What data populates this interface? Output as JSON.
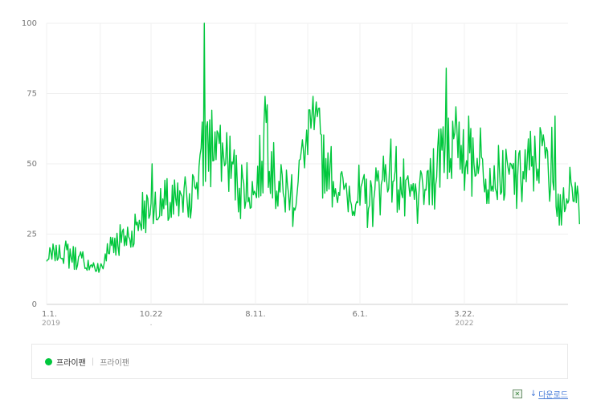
{
  "chart_data": {
    "type": "line",
    "ylim": [
      0,
      100
    ],
    "yticks": [
      0,
      25,
      50,
      75,
      100
    ],
    "grid": true,
    "x_range": [
      "2019-01-01",
      "2023-12-31"
    ],
    "x_tick_labels": [
      {
        "date": "2019-01-01",
        "label": "1.1.",
        "sub": "2019"
      },
      {
        "date": "2019-10-22",
        "label": "10.22",
        "sub": "."
      },
      {
        "date": "2020-08-11",
        "label": "8.11.",
        "sub": ""
      },
      {
        "date": "2021-06-01",
        "label": "6.1.",
        "sub": ""
      },
      {
        "date": "2022-03-22",
        "label": "3.22.",
        "sub": "2022"
      }
    ],
    "x_gridlines": [
      "2019-01-01",
      "2019-06-01",
      "2019-10-22",
      "2020-03-17",
      "2020-08-11",
      "2021-01-05",
      "2021-06-01",
      "2021-10-26",
      "2022-03-22",
      "2022-08-16"
    ],
    "series": [
      {
        "name": "프라이팬",
        "color": "#00c73c",
        "keypoints": [
          [
            "2019-01-01",
            16
          ],
          [
            "2019-02-15",
            19
          ],
          [
            "2019-04-01",
            16
          ],
          [
            "2019-05-15",
            13
          ],
          [
            "2019-06-10",
            13
          ],
          [
            "2019-06-25",
            22
          ],
          [
            "2019-08-01",
            23
          ],
          [
            "2019-09-01",
            25
          ],
          [
            "2019-10-01",
            33
          ],
          [
            "2019-11-15",
            35
          ],
          [
            "2020-01-01",
            35
          ],
          [
            "2020-02-01",
            38
          ],
          [
            "2020-03-01",
            45
          ],
          [
            "2020-03-22",
            55
          ],
          [
            "2020-04-15",
            57
          ],
          [
            "2020-05-20",
            52
          ],
          [
            "2020-07-01",
            42
          ],
          [
            "2020-08-11",
            40
          ],
          [
            "2020-09-10",
            60
          ],
          [
            "2020-10-10",
            42
          ],
          [
            "2020-11-30",
            38
          ],
          [
            "2020-12-25",
            55
          ],
          [
            "2021-01-25",
            62
          ],
          [
            "2021-03-01",
            48
          ],
          [
            "2021-04-15",
            40
          ],
          [
            "2021-06-01",
            38
          ],
          [
            "2021-07-01",
            37
          ],
          [
            "2021-08-15",
            48
          ],
          [
            "2021-09-10",
            45
          ],
          [
            "2021-10-10",
            38
          ],
          [
            "2021-11-15",
            38
          ],
          [
            "2021-12-20",
            44
          ],
          [
            "2022-01-20",
            58
          ],
          [
            "2022-03-22",
            55
          ],
          [
            "2022-05-01",
            52
          ],
          [
            "2022-06-15",
            45
          ],
          [
            "2022-08-16",
            45
          ],
          [
            "2022-10-01",
            50
          ],
          [
            "2022-11-01",
            55
          ],
          [
            "2022-12-01",
            40
          ],
          [
            "2023-01-15",
            38
          ],
          [
            "2023-02-10",
            36
          ]
        ],
        "spikes": [
          [
            "2020-03-19",
            100
          ],
          [
            "2020-03-30",
            65
          ],
          [
            "2020-09-06",
            74
          ],
          [
            "2020-09-14",
            71
          ],
          [
            "2021-01-20",
            74
          ],
          [
            "2021-01-30",
            72
          ],
          [
            "2019-10-26",
            50
          ],
          [
            "2022-01-31",
            84
          ],
          [
            "2022-12-03",
            67
          ],
          [
            "2022-11-22",
            63
          ]
        ]
      }
    ]
  },
  "legend": {
    "name": "프라이팬",
    "sub": "프라이팬",
    "color": "#00c73c"
  },
  "footer": {
    "download_label": "다운로드",
    "excel_icon": "excel-icon",
    "download_icon": "download-arrow-icon"
  }
}
